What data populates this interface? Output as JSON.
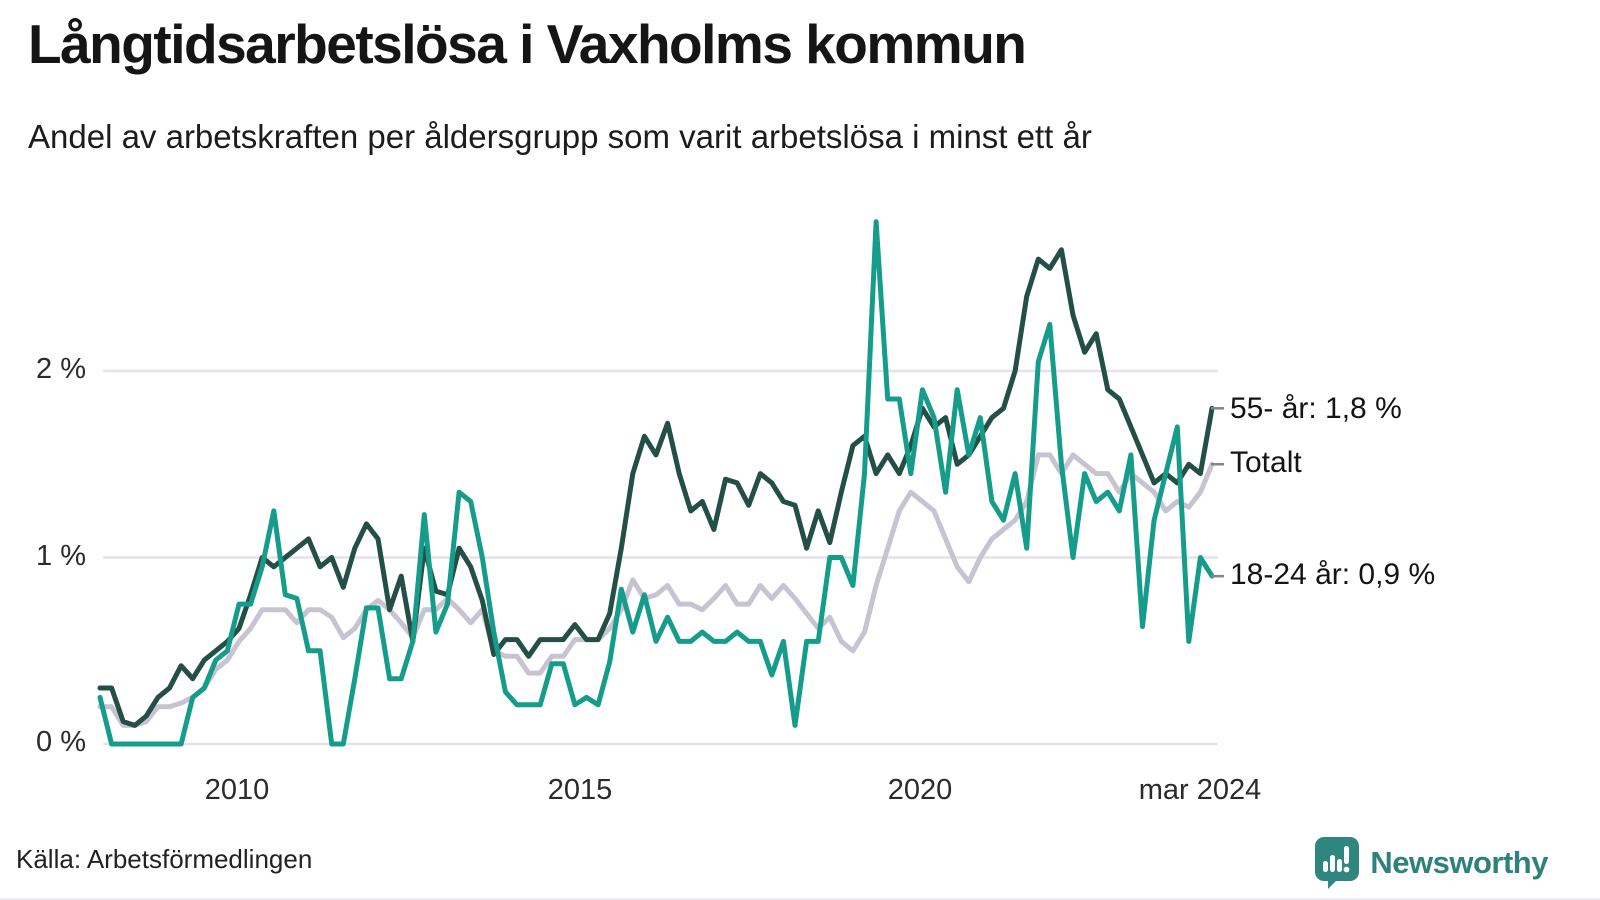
{
  "header": {
    "title": "Långtidsarbetslösa i Vaxholms kommun",
    "subtitle": "Andel av arbetskraften per åldersgrupp som varit arbetslösa i minst ett år"
  },
  "chart_data": {
    "type": "line",
    "x_start_year": 2008.08,
    "x_end_year": 2024.25,
    "x_step_months": 2,
    "ylim": [
      0,
      2.9
    ],
    "grid": "horizontal gridlines at 0/1/2 %, no vertical grid, no legend box (direct line labels at right)",
    "y_ticks": [
      {
        "value": 0,
        "label": "0 %"
      },
      {
        "value": 1,
        "label": "1 %"
      },
      {
        "value": 2,
        "label": "2 %"
      }
    ],
    "x_ticks": [
      {
        "year": 2010,
        "label": "2010"
      },
      {
        "year": 2015,
        "label": "2015"
      },
      {
        "year": 2020,
        "label": "2020"
      },
      {
        "year": 2024.17,
        "label": "mar 2024"
      }
    ],
    "series": [
      {
        "name": "Totalt",
        "end_label": "Totalt",
        "end_value_pct": 1.5,
        "color": "#C7C3D1",
        "values": [
          0.2,
          0.2,
          0.1,
          0.1,
          0.12,
          0.2,
          0.2,
          0.22,
          0.25,
          0.3,
          0.4,
          0.45,
          0.55,
          0.62,
          0.72,
          0.72,
          0.72,
          0.65,
          0.72,
          0.72,
          0.68,
          0.57,
          0.62,
          0.72,
          0.77,
          0.72,
          0.65,
          0.57,
          0.72,
          0.72,
          0.78,
          0.72,
          0.65,
          0.72,
          0.5,
          0.47,
          0.47,
          0.38,
          0.38,
          0.47,
          0.47,
          0.56,
          0.56,
          0.56,
          0.62,
          0.72,
          0.88,
          0.78,
          0.8,
          0.85,
          0.75,
          0.75,
          0.72,
          0.78,
          0.85,
          0.75,
          0.75,
          0.85,
          0.78,
          0.85,
          0.78,
          0.7,
          0.62,
          0.68,
          0.55,
          0.5,
          0.6,
          0.85,
          1.05,
          1.25,
          1.35,
          1.3,
          1.25,
          1.1,
          0.95,
          0.87,
          1.0,
          1.1,
          1.15,
          1.2,
          1.3,
          1.55,
          1.55,
          1.45,
          1.55,
          1.5,
          1.45,
          1.45,
          1.35,
          1.45,
          1.4,
          1.35,
          1.25,
          1.3,
          1.27,
          1.35,
          1.5
        ]
      },
      {
        "name": "55- år",
        "end_label": "55- år: 1,8 %",
        "end_value_pct": 1.8,
        "color": "#234F47",
        "values": [
          0.3,
          0.3,
          0.12,
          0.1,
          0.15,
          0.25,
          0.3,
          0.42,
          0.35,
          0.45,
          0.5,
          0.55,
          0.62,
          0.8,
          1.0,
          0.95,
          1.0,
          1.05,
          1.1,
          0.95,
          1.0,
          0.84,
          1.05,
          1.18,
          1.1,
          0.72,
          0.9,
          0.55,
          1.05,
          0.82,
          0.8,
          1.05,
          0.95,
          0.77,
          0.48,
          0.56,
          0.56,
          0.47,
          0.56,
          0.56,
          0.56,
          0.64,
          0.56,
          0.56,
          0.7,
          1.05,
          1.45,
          1.65,
          1.55,
          1.72,
          1.45,
          1.25,
          1.3,
          1.15,
          1.42,
          1.4,
          1.28,
          1.45,
          1.4,
          1.3,
          1.28,
          1.05,
          1.25,
          1.08,
          1.35,
          1.6,
          1.65,
          1.45,
          1.55,
          1.45,
          1.6,
          1.8,
          1.7,
          1.75,
          1.5,
          1.55,
          1.65,
          1.75,
          1.8,
          2.0,
          2.4,
          2.6,
          2.55,
          2.65,
          2.3,
          2.1,
          2.2,
          1.9,
          1.85,
          1.7,
          1.55,
          1.4,
          1.45,
          1.4,
          1.5,
          1.45,
          1.8
        ]
      },
      {
        "name": "18-24 år",
        "end_label": "18-24 år: 0,9 %",
        "end_value_pct": 0.9,
        "color": "#169C8B",
        "values": [
          0.25,
          0.0,
          0.0,
          0.0,
          0.0,
          0.0,
          0.0,
          0.0,
          0.25,
          0.3,
          0.45,
          0.5,
          0.75,
          0.75,
          0.95,
          1.25,
          0.8,
          0.78,
          0.5,
          0.5,
          0.0,
          0.0,
          0.35,
          0.73,
          0.73,
          0.35,
          0.35,
          0.55,
          1.23,
          0.6,
          0.75,
          1.35,
          1.3,
          1.0,
          0.6,
          0.28,
          0.21,
          0.21,
          0.21,
          0.43,
          0.43,
          0.21,
          0.25,
          0.21,
          0.44,
          0.83,
          0.6,
          0.8,
          0.55,
          0.68,
          0.55,
          0.55,
          0.6,
          0.55,
          0.55,
          0.6,
          0.55,
          0.55,
          0.37,
          0.55,
          0.1,
          0.55,
          0.55,
          1.0,
          1.0,
          0.85,
          1.45,
          2.8,
          1.85,
          1.85,
          1.45,
          1.9,
          1.75,
          1.35,
          1.9,
          1.55,
          1.75,
          1.3,
          1.2,
          1.45,
          1.05,
          2.05,
          2.25,
          1.5,
          1.0,
          1.45,
          1.3,
          1.35,
          1.25,
          1.55,
          0.63,
          1.2,
          1.45,
          1.7,
          0.55,
          1.0,
          0.9
        ]
      }
    ]
  },
  "footer": {
    "source": "Källa: Arbetsförmedlingen",
    "brand": "Newsworthy"
  },
  "colors": {
    "grid": "#E4E3E9",
    "tick_dash": "#85858C",
    "brand_teal": "#2F827B"
  }
}
